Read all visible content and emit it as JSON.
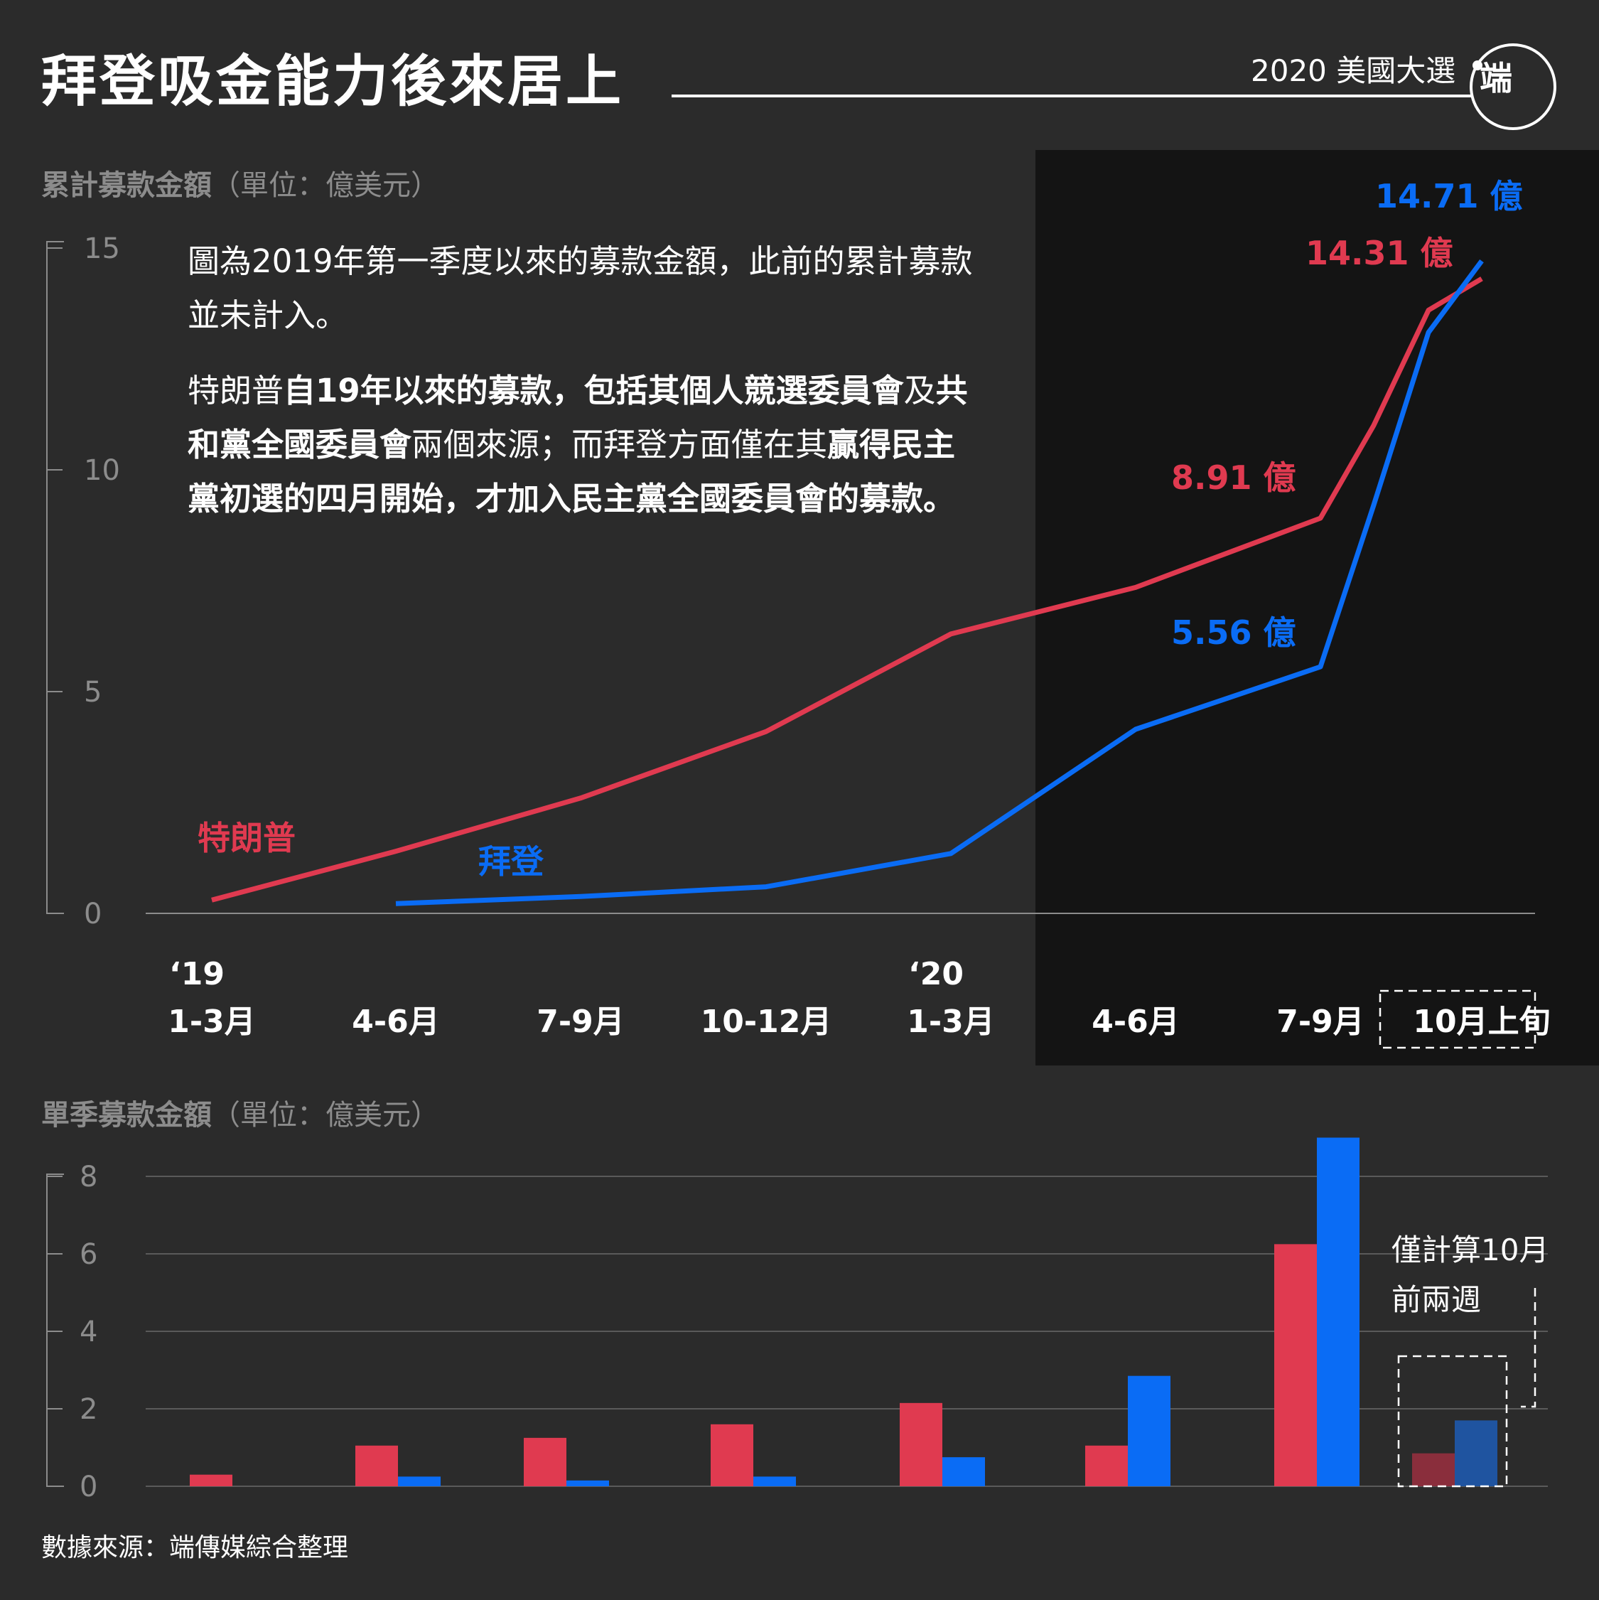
{
  "header": {
    "title": "拜登吸金能力後來居上",
    "series_label": "2020 美國大選",
    "logo_text": "端"
  },
  "sections": {
    "line_title": "累計募款金額",
    "line_unit": "（單位：億美元）",
    "bar_title": "單季募款金額",
    "bar_unit": "（單位：億美元）"
  },
  "notes": {
    "p1": "圖為2019年第一季度以來的募款金額，此前的累計募款並未計入。",
    "p2_a": "特朗普",
    "p2_b": "自19年以來的募款，包括其個人競選委員會",
    "p2_c": "及",
    "p2_d": "共和黨全國委員會",
    "p2_e": "兩個來源；而拜登方面僅在其",
    "p2_f": "贏得民主黨初選的四月開始，才加入民主黨全國委員會的募款。"
  },
  "source": "數據來源：端傳媒綜合整理",
  "colors": {
    "trump": "#e03a50",
    "biden": "#0a6cf5",
    "trump_dim": "#8a2e3c",
    "biden_dim": "#1f54a0",
    "background": "#2b2b2b",
    "panel": "#141414"
  },
  "chart_data": [
    {
      "type": "line",
      "title": "累計募款金額",
      "unit": "（單位：億美元）",
      "x_year_labels": [
        "‘19",
        "",
        "",
        "",
        "‘20",
        "",
        "",
        ""
      ],
      "categories": [
        "1-3月",
        "4-6月",
        "7-9月",
        "10-12月",
        "1-3月",
        "4-6月",
        "7-9月",
        "10月上旬"
      ],
      "ylim": [
        0,
        15
      ],
      "yticks": [
        0,
        5,
        10,
        15
      ],
      "series": [
        {
          "name": "特朗普",
          "points": [
            [
              0,
              0.3
            ],
            [
              1,
              1.4
            ],
            [
              2,
              2.6
            ],
            [
              3,
              4.1
            ],
            [
              4,
              6.3
            ],
            [
              5,
              7.35
            ],
            [
              6,
              8.91
            ],
            [
              6.33,
              11.0
            ],
            [
              6.67,
              13.6
            ],
            [
              7,
              14.31
            ]
          ],
          "end_label": "14.31 億",
          "mid_label": "8.91 億"
        },
        {
          "name": "拜登",
          "points": [
            [
              1,
              0.22
            ],
            [
              2,
              0.38
            ],
            [
              3,
              0.6
            ],
            [
              4,
              1.35
            ],
            [
              5,
              4.15
            ],
            [
              6,
              5.56
            ],
            [
              6.33,
              9.2
            ],
            [
              6.67,
              13.1
            ],
            [
              7,
              14.71
            ]
          ],
          "end_label": "14.71 億",
          "mid_label": "5.56 億"
        }
      ]
    },
    {
      "type": "bar",
      "title": "單季募款金額",
      "unit": "（單位：億美元）",
      "categories": [
        "1-3月",
        "4-6月",
        "7-9月",
        "10-12月",
        "1-3月",
        "4-6月",
        "7-9月",
        "10月上旬"
      ],
      "ylim": [
        0,
        8
      ],
      "yticks": [
        0,
        2,
        4,
        6,
        8
      ],
      "series": [
        {
          "name": "特朗普",
          "values": [
            0.3,
            1.05,
            1.25,
            1.6,
            2.15,
            1.05,
            6.25,
            0.85
          ]
        },
        {
          "name": "拜登",
          "values": [
            0,
            0.25,
            0.15,
            0.25,
            0.75,
            2.85,
            9.0,
            1.7
          ]
        }
      ],
      "annotation": "僅計算10月前兩週"
    }
  ]
}
